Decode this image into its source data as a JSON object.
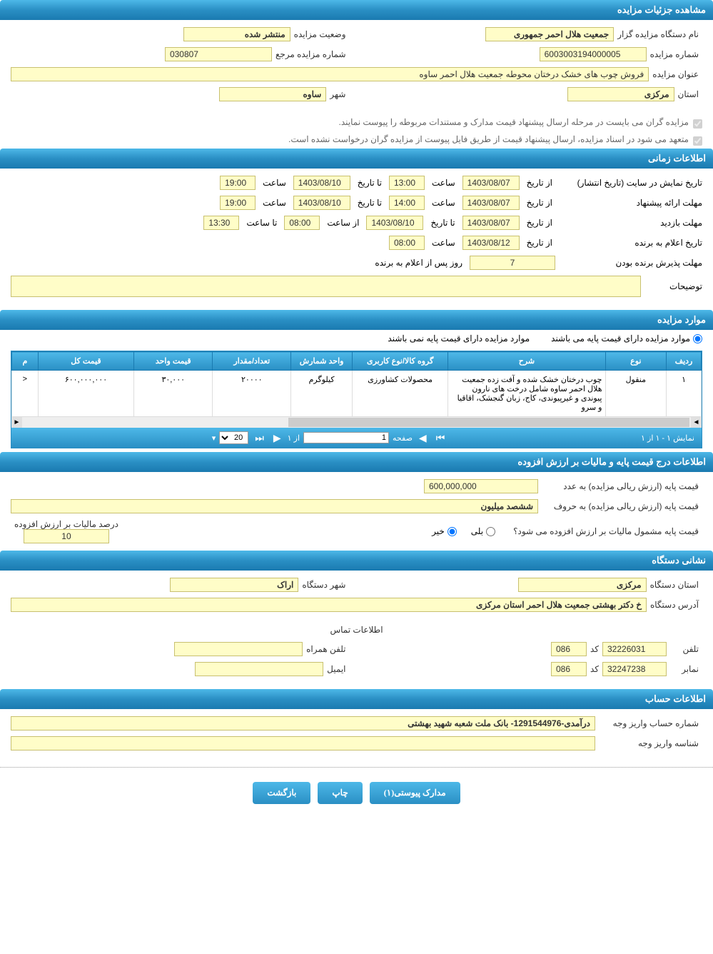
{
  "sections": {
    "details": {
      "title": "مشاهده جزئیات مزایده"
    },
    "time": {
      "title": "اطلاعات زمانی"
    },
    "items": {
      "title": "موارد مزایده"
    },
    "price_tax": {
      "title": "اطلاعات درج قیمت پایه و مالیات بر ارزش افزوده"
    },
    "org": {
      "title": "نشانی دستگاه"
    },
    "account": {
      "title": "اطلاعات حساب"
    }
  },
  "details": {
    "organizer_label": "نام دستگاه مزایده گزار",
    "organizer": "جمعیت هلال احمر جمهوری",
    "status_label": "وضعیت مزایده",
    "status": "منتشر شده",
    "number_label": "شماره مزایده",
    "number": "6003003194000005",
    "ref_label": "شماره مزایده مرجع",
    "ref": "030807",
    "title_label": "عنوان مزایده",
    "title_value": "فروش چوب های خشک درختان محوطه جمعیت هلال احمر ساوه",
    "province_label": "استان",
    "province": "مرکزی",
    "city_label": "شهر",
    "city": "ساوه",
    "check1": "مزایده گران می بایست در مرحله ارسال پیشنهاد قیمت مدارک و مستندات مربوطه را پیوست نمایند.",
    "check2": "متعهد می شود در اسناد مزایده، ارسال پیشنهاد قیمت از طریق فایل پیوست از مزایده گران درخواست نشده است."
  },
  "time": {
    "publish_label": "تاریخ نمایش در سایت (تاریخ انتشار)",
    "from_label": "از تاریخ",
    "to_label": "تا تاریخ",
    "time_label": "ساعت",
    "from_time_label": "از ساعت",
    "to_time_label": "تا ساعت",
    "publish_from": "1403/08/07",
    "publish_from_time": "13:00",
    "publish_to": "1403/08/10",
    "publish_to_time": "19:00",
    "proposal_label": "مهلت ارائه پیشنهاد",
    "proposal_from": "1403/08/07",
    "proposal_from_time": "14:00",
    "proposal_to": "1403/08/10",
    "proposal_to_time": "19:00",
    "visit_label": "مهلت بازدید",
    "visit_from": "1403/08/07",
    "visit_to": "1403/08/10",
    "visit_from_time": "08:00",
    "visit_to_time": "13:30",
    "announce_label": "تاریخ اعلام به برنده",
    "announce_from": "1403/08/12",
    "announce_time": "08:00",
    "accept_label": "مهلت پذیرش برنده بودن",
    "accept_days": "7",
    "accept_suffix": "روز پس از اعلام به برنده",
    "notes_label": "توضیحات",
    "notes": ""
  },
  "items_radio": {
    "has_base": "موارد مزایده دارای قیمت پایه می باشند",
    "no_base": "موارد مزایده دارای قیمت پایه نمی باشند"
  },
  "grid": {
    "columns": [
      "ردیف",
      "نوع",
      "شرح",
      "گروه کالا/نوع کاربری",
      "واحد شمارش",
      "تعداد/مقدار",
      "قیمت واحد",
      "قیمت کل",
      "م"
    ],
    "col_widths": [
      "40px",
      "70px",
      "180px",
      "110px",
      "70px",
      "90px",
      "90px",
      "110px",
      "30px"
    ],
    "row": {
      "idx": "۱",
      "type": "منقول",
      "desc": "چوب درختان خشک شده و آفت زده جمعیت هلال احمر ساوه شامل درخت های نارون پیوندی و غیرپیوندی، کاج، زبان گنجشک، اقاقیا و سرو",
      "group": "محصولات کشاورزی",
      "unit": "کیلوگرم",
      "qty": "۲۰۰۰۰",
      "unit_price": "۳۰,۰۰۰",
      "total": "۶۰۰,۰۰۰,۰۰۰",
      "extra": "<"
    },
    "pager": {
      "display": "نمایش ۱ - ۱ از ۱",
      "page_label": "صفحه",
      "page_value": "1",
      "of_label": "از ۱",
      "size": "20"
    }
  },
  "price_tax": {
    "base_num_label": "قیمت پایه (ارزش ریالی مزایده) به عدد",
    "base_num": "600,000,000",
    "base_text_label": "قیمت پایه (ارزش ریالی مزایده) به حروف",
    "base_text": "ششصد میلیون",
    "tax_q": "قیمت پایه مشمول مالیات بر ارزش افزوده می شود؟",
    "yes": "بلی",
    "no": "خیر",
    "tax_pct_label": "درصد مالیات بر ارزش افزوده",
    "tax_pct": "10"
  },
  "org": {
    "province_label": "استان دستگاه",
    "province": "مرکزی",
    "city_label": "شهر دستگاه",
    "city": "اراک",
    "address_label": "آدرس دستگاه",
    "address": "خ دکتر بهشتی جمعیت هلال احمر استان مرکزی",
    "contact_title": "اطلاعات تماس",
    "phone_label": "تلفن",
    "phone": "32226031",
    "code_label": "کد",
    "phone_code": "086",
    "mobile_label": "تلفن همراه",
    "mobile": "",
    "fax_label": "نمابر",
    "fax": "32247238",
    "fax_code": "086",
    "email_label": "ایمیل",
    "email": ""
  },
  "account": {
    "acc_label": "شماره حساب واریز وجه",
    "acc": "درآمدی-1291544976- بانک ملت شعبه شهید بهشتی",
    "id_label": "شناسه واریز وجه",
    "id": ""
  },
  "buttons": {
    "attachments": "مدارک پیوستی(۱)",
    "print": "چاپ",
    "back": "بازگشت"
  }
}
